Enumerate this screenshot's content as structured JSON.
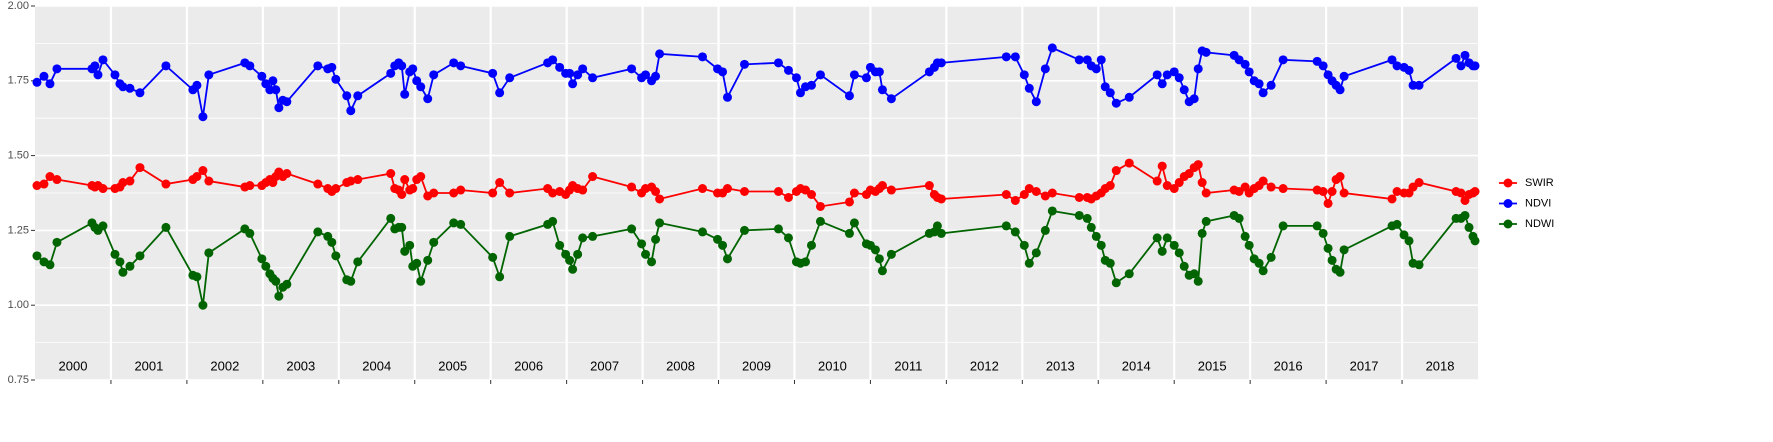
{
  "chart_data": {
    "type": "line",
    "xlim": [
      2000,
      2019
    ],
    "ylim": [
      0.75,
      2.0
    ],
    "yticks": [
      {
        "value": 0.75,
        "label": "0.75"
      },
      {
        "value": 1.0,
        "label": "1.00"
      },
      {
        "value": 1.25,
        "label": "1.25"
      },
      {
        "value": 1.5,
        "label": "1.50"
      },
      {
        "value": 1.75,
        "label": "1.75"
      },
      {
        "value": 2.0,
        "label": "2.00"
      }
    ],
    "grid": true,
    "legend": "right",
    "year_labels": [
      "2000",
      "2001",
      "2002",
      "2003",
      "2004",
      "2005",
      "2006",
      "2007",
      "2008",
      "2009",
      "2010",
      "2011",
      "2012",
      "2013",
      "2014",
      "2015",
      "2016",
      "2017",
      "2018"
    ],
    "x": [
      2000.026,
      2000.118,
      2000.197,
      2000.289,
      2000.75,
      2000.789,
      2000.829,
      2000.895,
      2001.053,
      2001.118,
      2001.158,
      2001.25,
      2001.382,
      2001.724,
      2002.079,
      2002.132,
      2002.211,
      2002.289,
      2002.763,
      2002.829,
      2002.987,
      2003.039,
      2003.092,
      2003.132,
      2003.171,
      2003.211,
      2003.263,
      2003.316,
      2003.724,
      2003.855,
      2003.908,
      2003.961,
      2004.105,
      2004.158,
      2004.25,
      2004.684,
      2004.737,
      2004.789,
      2004.829,
      2004.868,
      2004.934,
      2004.974,
      2005.026,
      2005.079,
      2005.171,
      2005.25,
      2005.513,
      2005.605,
      2006.026,
      2006.118,
      2006.25,
      2006.75,
      2006.816,
      2006.908,
      2006.987,
      2007.039,
      2007.079,
      2007.145,
      2007.211,
      2007.342,
      2007.855,
      2007.987,
      2008.039,
      2008.118,
      2008.171,
      2008.224,
      2008.789,
      2008.987,
      2009.053,
      2009.118,
      2009.342,
      2009.789,
      2009.921,
      2010.026,
      2010.079,
      2010.145,
      2010.224,
      2010.342,
      2010.724,
      2010.789,
      2010.947,
      2011.0,
      2011.066,
      2011.118,
      2011.158,
      2011.276,
      2011.776,
      2011.842,
      2011.882,
      2011.934,
      2012.789,
      2012.908,
      2013.026,
      2013.092,
      2013.184,
      2013.303,
      2013.395,
      2013.75,
      2013.855,
      2013.908,
      2013.974,
      2014.039,
      2014.092,
      2014.158,
      2014.237,
      2014.408,
      2014.776,
      2014.842,
      2014.908,
      2015.0,
      2015.066,
      2015.132,
      2015.197,
      2015.263,
      2015.316,
      2015.368,
      2015.421,
      2015.789,
      2015.855,
      2015.934,
      2015.987,
      2016.053,
      2016.118,
      2016.171,
      2016.276,
      2016.434,
      2016.882,
      2016.961,
      2017.026,
      2017.079,
      2017.132,
      2017.184,
      2017.237,
      2017.868,
      2017.934,
      2018.026,
      2018.092,
      2018.145,
      2018.224,
      2018.711,
      2018.776,
      2018.829,
      2018.882,
      2018.934,
      2018.961
    ],
    "series": [
      {
        "name": "SWIR",
        "color": "#ff0000",
        "values": [
          1.4,
          1.405,
          1.43,
          1.42,
          1.4,
          1.395,
          1.4,
          1.39,
          1.39,
          1.395,
          1.41,
          1.415,
          1.46,
          1.405,
          1.42,
          1.43,
          1.45,
          1.415,
          1.395,
          1.4,
          1.4,
          1.41,
          1.42,
          1.41,
          1.43,
          1.445,
          1.43,
          1.44,
          1.405,
          1.39,
          1.38,
          1.39,
          1.41,
          1.415,
          1.42,
          1.44,
          1.39,
          1.385,
          1.37,
          1.42,
          1.385,
          1.39,
          1.42,
          1.43,
          1.365,
          1.375,
          1.375,
          1.385,
          1.375,
          1.41,
          1.375,
          1.39,
          1.375,
          1.38,
          1.37,
          1.385,
          1.4,
          1.39,
          1.385,
          1.43,
          1.395,
          1.375,
          1.39,
          1.395,
          1.38,
          1.355,
          1.39,
          1.375,
          1.375,
          1.39,
          1.38,
          1.38,
          1.36,
          1.38,
          1.39,
          1.385,
          1.37,
          1.33,
          1.345,
          1.375,
          1.37,
          1.385,
          1.38,
          1.39,
          1.4,
          1.385,
          1.4,
          1.37,
          1.36,
          1.355,
          1.37,
          1.35,
          1.37,
          1.39,
          1.38,
          1.365,
          1.375,
          1.36,
          1.36,
          1.355,
          1.365,
          1.375,
          1.39,
          1.4,
          1.45,
          1.475,
          1.415,
          1.465,
          1.4,
          1.39,
          1.41,
          1.43,
          1.44,
          1.46,
          1.47,
          1.41,
          1.375,
          1.385,
          1.38,
          1.395,
          1.375,
          1.39,
          1.4,
          1.415,
          1.395,
          1.39,
          1.385,
          1.38,
          1.34,
          1.38,
          1.42,
          1.43,
          1.375,
          1.355,
          1.38,
          1.375,
          1.375,
          1.395,
          1.41,
          1.38,
          1.375,
          1.35,
          1.37,
          1.375,
          1.38
        ]
      },
      {
        "name": "NDVI",
        "color": "#0000ff",
        "values": [
          1.745,
          1.765,
          1.74,
          1.79,
          1.79,
          1.8,
          1.77,
          1.82,
          1.77,
          1.74,
          1.73,
          1.725,
          1.71,
          1.8,
          1.72,
          1.735,
          1.63,
          1.77,
          1.81,
          1.8,
          1.765,
          1.74,
          1.72,
          1.75,
          1.72,
          1.66,
          1.685,
          1.68,
          1.8,
          1.79,
          1.795,
          1.755,
          1.7,
          1.65,
          1.7,
          1.775,
          1.8,
          1.81,
          1.8,
          1.705,
          1.78,
          1.79,
          1.75,
          1.73,
          1.69,
          1.77,
          1.81,
          1.8,
          1.775,
          1.71,
          1.76,
          1.81,
          1.82,
          1.795,
          1.775,
          1.775,
          1.74,
          1.77,
          1.79,
          1.76,
          1.79,
          1.76,
          1.77,
          1.75,
          1.765,
          1.84,
          1.83,
          1.79,
          1.78,
          1.695,
          1.805,
          1.81,
          1.785,
          1.76,
          1.71,
          1.73,
          1.735,
          1.77,
          1.7,
          1.77,
          1.76,
          1.795,
          1.78,
          1.78,
          1.72,
          1.69,
          1.78,
          1.795,
          1.81,
          1.81,
          1.83,
          1.83,
          1.77,
          1.725,
          1.68,
          1.79,
          1.86,
          1.82,
          1.82,
          1.8,
          1.79,
          1.82,
          1.73,
          1.71,
          1.675,
          1.695,
          1.77,
          1.74,
          1.77,
          1.78,
          1.76,
          1.72,
          1.68,
          1.69,
          1.79,
          1.85,
          1.845,
          1.835,
          1.82,
          1.805,
          1.78,
          1.75,
          1.74,
          1.71,
          1.735,
          1.82,
          1.815,
          1.8,
          1.77,
          1.75,
          1.735,
          1.72,
          1.765,
          1.82,
          1.8,
          1.795,
          1.785,
          1.735,
          1.735,
          1.825,
          1.8,
          1.835,
          1.81,
          1.8,
          1.8
        ]
      },
      {
        "name": "NDWI",
        "color": "#006400",
        "values": [
          1.165,
          1.145,
          1.135,
          1.21,
          1.275,
          1.26,
          1.25,
          1.265,
          1.17,
          1.145,
          1.11,
          1.13,
          1.165,
          1.26,
          1.1,
          1.095,
          1.0,
          1.175,
          1.255,
          1.24,
          1.155,
          1.13,
          1.105,
          1.09,
          1.08,
          1.03,
          1.06,
          1.07,
          1.245,
          1.23,
          1.21,
          1.165,
          1.085,
          1.08,
          1.145,
          1.29,
          1.255,
          1.26,
          1.26,
          1.18,
          1.2,
          1.13,
          1.14,
          1.08,
          1.15,
          1.21,
          1.275,
          1.27,
          1.16,
          1.095,
          1.23,
          1.27,
          1.28,
          1.2,
          1.17,
          1.15,
          1.12,
          1.17,
          1.225,
          1.23,
          1.255,
          1.205,
          1.17,
          1.145,
          1.22,
          1.275,
          1.245,
          1.22,
          1.2,
          1.155,
          1.25,
          1.255,
          1.225,
          1.145,
          1.14,
          1.145,
          1.2,
          1.28,
          1.24,
          1.275,
          1.205,
          1.2,
          1.185,
          1.155,
          1.115,
          1.17,
          1.24,
          1.245,
          1.265,
          1.24,
          1.265,
          1.245,
          1.2,
          1.14,
          1.175,
          1.25,
          1.315,
          1.3,
          1.29,
          1.26,
          1.23,
          1.2,
          1.15,
          1.14,
          1.075,
          1.105,
          1.225,
          1.18,
          1.225,
          1.2,
          1.175,
          1.13,
          1.1,
          1.105,
          1.08,
          1.24,
          1.28,
          1.3,
          1.29,
          1.23,
          1.2,
          1.155,
          1.14,
          1.115,
          1.16,
          1.265,
          1.265,
          1.24,
          1.19,
          1.15,
          1.12,
          1.11,
          1.185,
          1.265,
          1.27,
          1.235,
          1.215,
          1.14,
          1.135,
          1.29,
          1.29,
          1.3,
          1.26,
          1.23,
          1.215
        ]
      }
    ]
  }
}
